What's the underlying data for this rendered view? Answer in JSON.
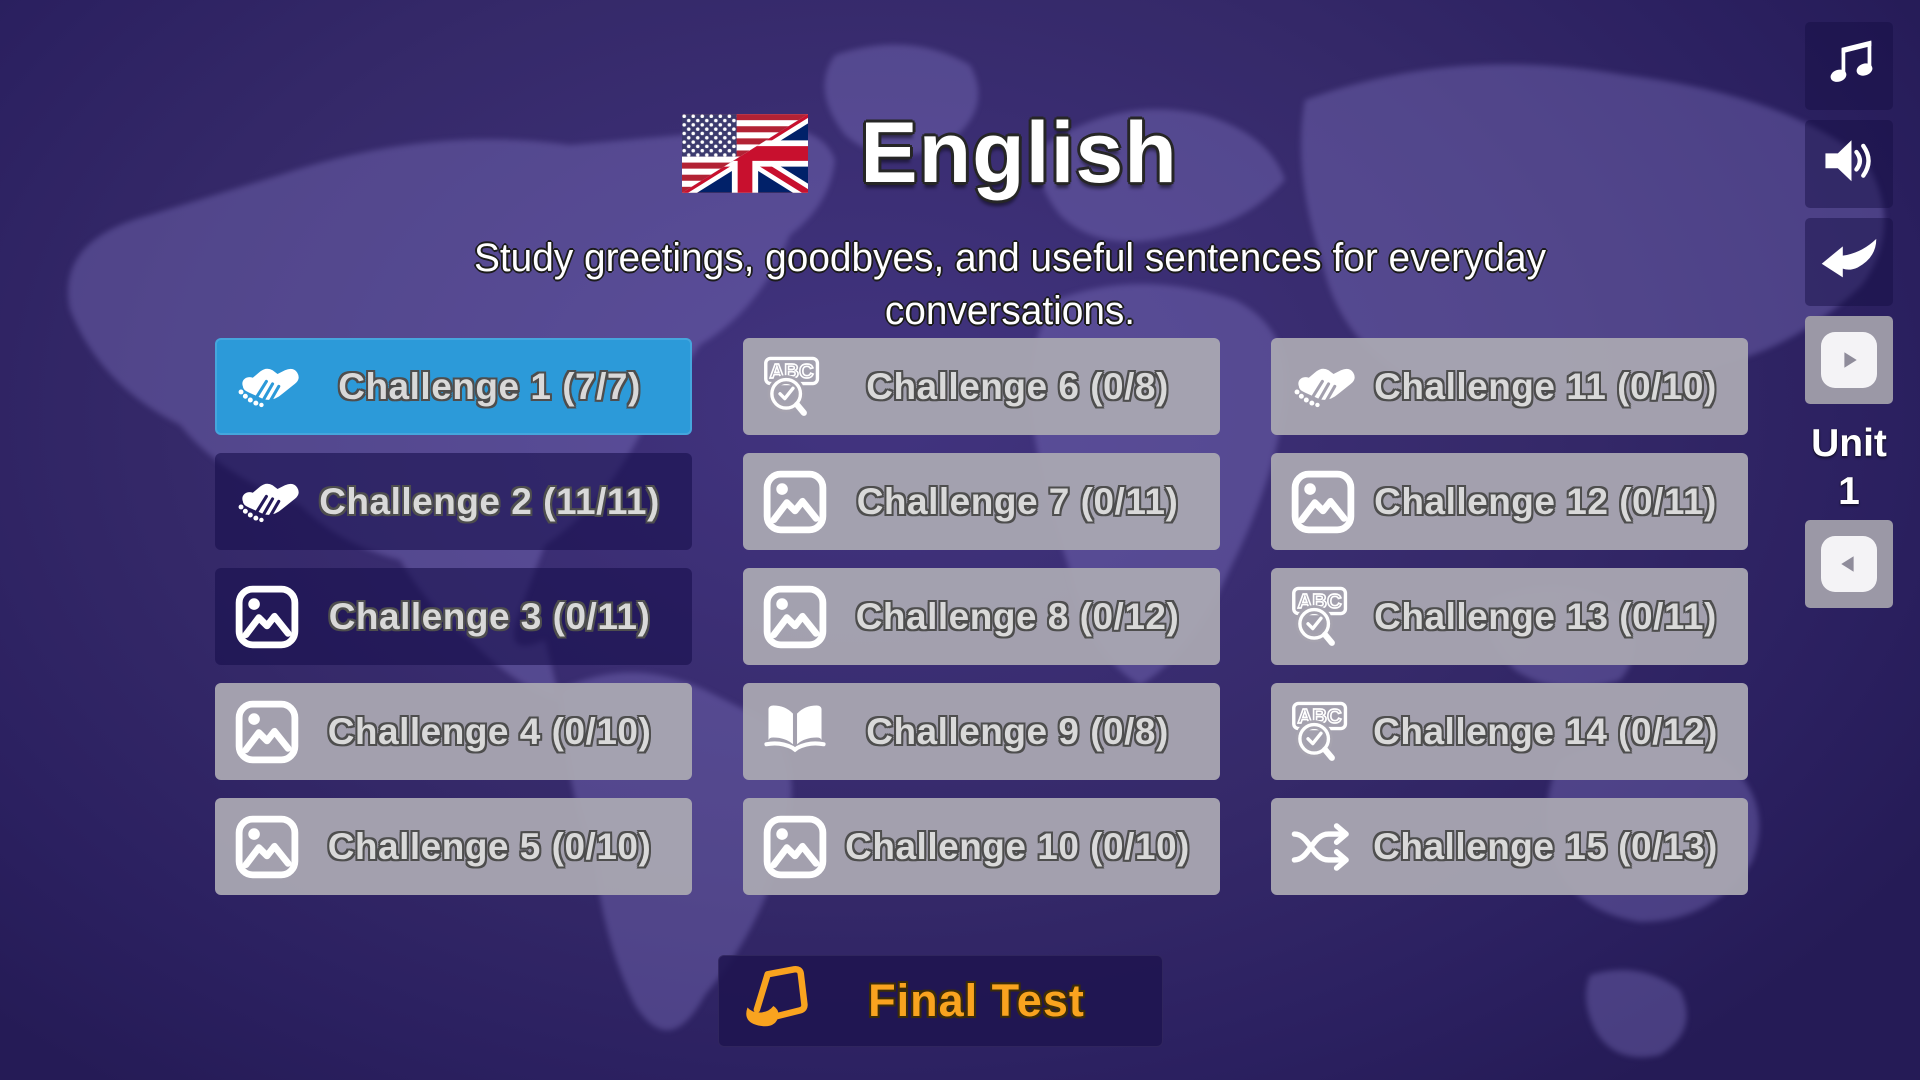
{
  "header": {
    "title": "English",
    "subtitle": "Study greetings, goodbyes, and useful sentences for everyday conversations.",
    "flag": "us-uk-flag"
  },
  "challenges": [
    {
      "label": "Challenge 1 (7/7)",
      "icon": "handshake",
      "state": "active"
    },
    {
      "label": "Challenge 2 (11/11)",
      "icon": "handshake",
      "state": "dark"
    },
    {
      "label": "Challenge 3 (0/11)",
      "icon": "picture",
      "state": "dark"
    },
    {
      "label": "Challenge 4 (0/10)",
      "icon": "picture",
      "state": "locked"
    },
    {
      "label": "Challenge 5 (0/10)",
      "icon": "picture",
      "state": "locked"
    },
    {
      "label": "Challenge 6 (0/8)",
      "icon": "abc-search",
      "state": "locked"
    },
    {
      "label": "Challenge 7 (0/11)",
      "icon": "picture",
      "state": "locked"
    },
    {
      "label": "Challenge 8 (0/12)",
      "icon": "picture",
      "state": "locked"
    },
    {
      "label": "Challenge 9 (0/8)",
      "icon": "book",
      "state": "locked"
    },
    {
      "label": "Challenge 10 (0/10)",
      "icon": "picture",
      "state": "locked"
    },
    {
      "label": "Challenge 11 (0/10)",
      "icon": "handshake",
      "state": "locked"
    },
    {
      "label": "Challenge 12 (0/11)",
      "icon": "picture",
      "state": "locked"
    },
    {
      "label": "Challenge 13 (0/11)",
      "icon": "abc-search",
      "state": "locked"
    },
    {
      "label": "Challenge 14 (0/12)",
      "icon": "abc-search",
      "state": "locked"
    },
    {
      "label": "Challenge 15 (0/13)",
      "icon": "shuffle",
      "state": "locked"
    }
  ],
  "final_test": {
    "label": "Final Test"
  },
  "unit_panel": {
    "unit_label": "Unit",
    "unit_number": "1"
  },
  "sidebar": {
    "buttons": [
      "music-icon",
      "sound-icon",
      "back-icon",
      "next-unit-icon",
      "prev-unit-icon"
    ]
  },
  "colors": {
    "active_blue": "#2C9AD9",
    "unlocked_purple": "#2A1F5E",
    "locked_gray": "#A6A3AF",
    "accent_orange": "#F9A31F",
    "background_purple": "#352969"
  }
}
